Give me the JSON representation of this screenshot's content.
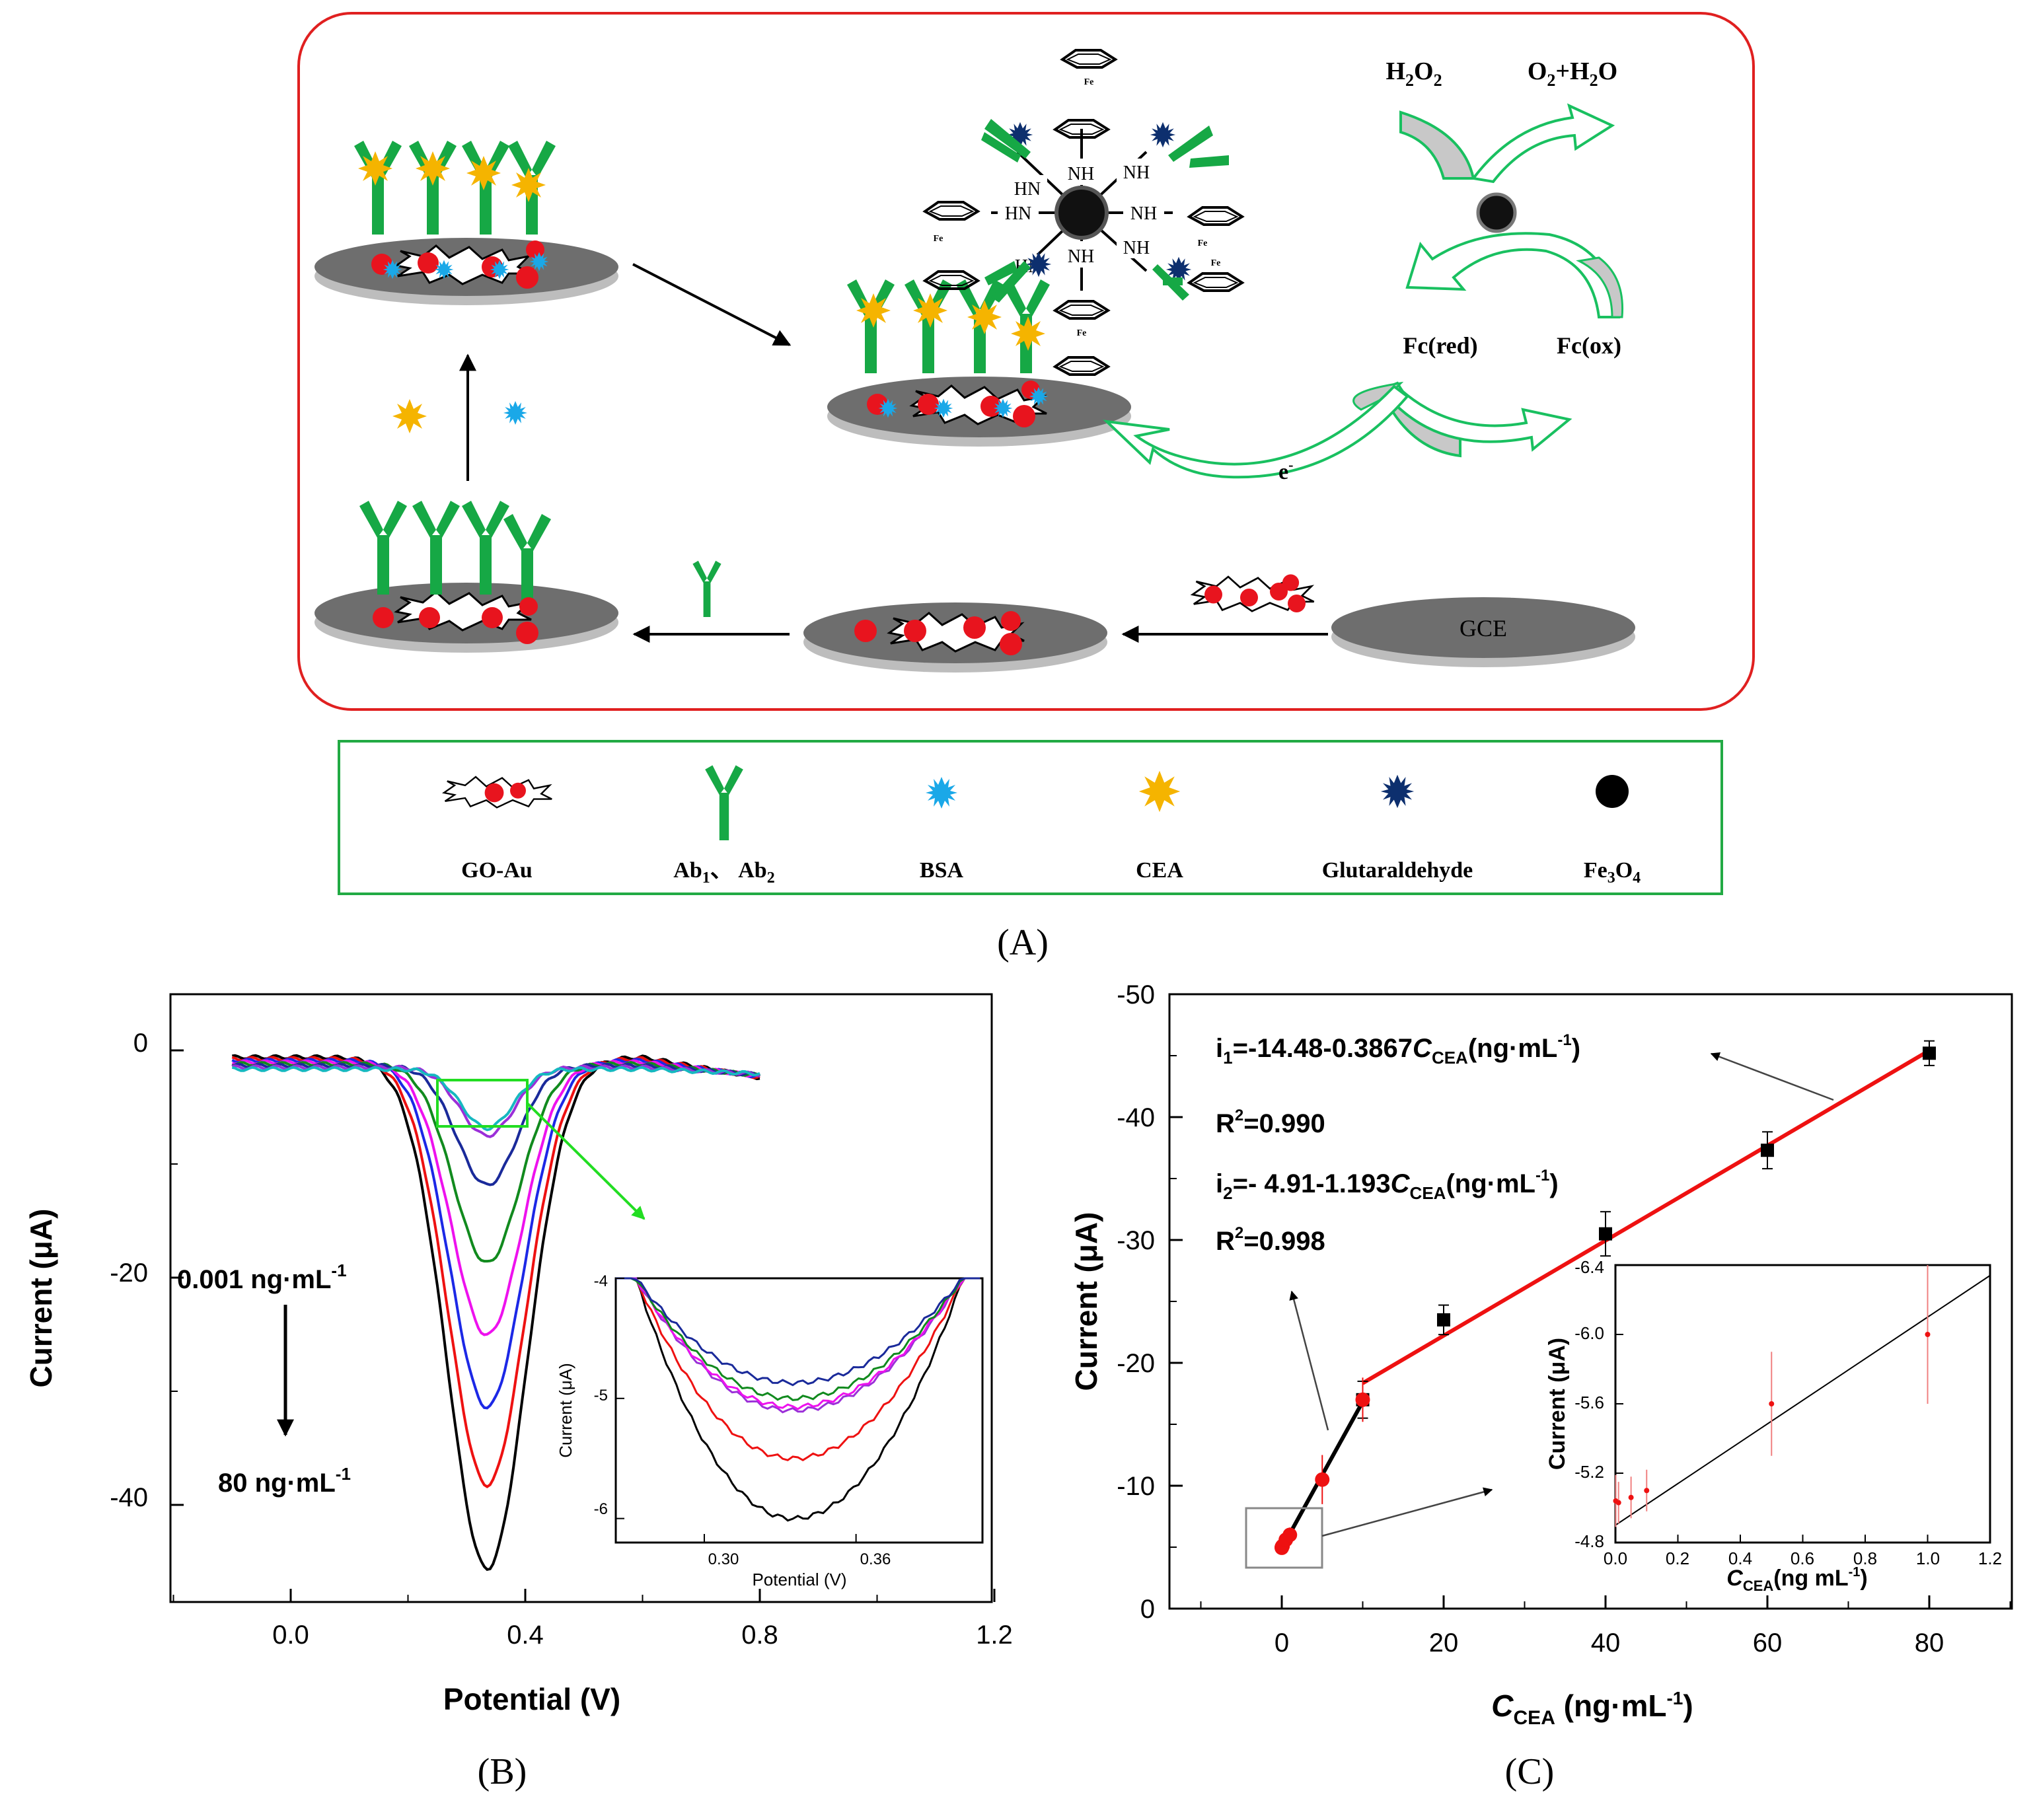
{
  "panelA": {
    "caption": "(A)",
    "ferrocene_label": "Fe",
    "nh_label": "NH",
    "hn_label": "HN",
    "h2o2": "H2O2",
    "o2h2o": "O2+H2O",
    "fc_red": "Fc(red)",
    "fc_ox": "Fc(ox)",
    "electron": "e-",
    "gce": "GCE",
    "legend": {
      "go_au": "GO-Au",
      "ab": "Ab1、Ab2",
      "bsa": "BSA",
      "cea": "CEA",
      "glut": "Glutaraldehyde",
      "fe3o4": "Fe3O4"
    },
    "colors": {
      "frame": "#e02020",
      "legend_frame": "#22aa44",
      "antibody": "#16a845",
      "bsa": "#1aa8e8",
      "cea": "#f5b400",
      "glut": "#0d2f6e",
      "gold": "#e8141e",
      "electrode": "#6e6e6e",
      "arrow_green": "#19c060"
    }
  },
  "panelB": {
    "caption": "(B)",
    "xlabel": "Potential (V)",
    "ylabel": "Current (μA)",
    "xticks": [
      "0.0",
      "0.4",
      "0.8",
      "1.2"
    ],
    "yticks": [
      "0",
      "-20",
      "-40"
    ],
    "conc_low": "0.001  ng·mL",
    "conc_high": "80 ng·mL",
    "sup_minus1": "-1",
    "inset": {
      "xlabel": "Potential (V)",
      "ylabel": "Current (μA)",
      "xticks": [
        "0.30",
        "0.36"
      ],
      "yticks": [
        "-4",
        "-5",
        "-6"
      ]
    }
  },
  "panelC": {
    "caption": "(C)",
    "xlabel_main": "C",
    "xlabel_sub": "CEA",
    "xlabel_unit": " (ng·mL",
    "xlabel_sup": "-1",
    "xlabel_close": ")",
    "ylabel": "Current (μA)",
    "xticks": [
      "0",
      "20",
      "40",
      "60",
      "80"
    ],
    "yticks": [
      "-50",
      "-40",
      "-30",
      "-20",
      "-10",
      "0"
    ],
    "eq1_a": "i",
    "eq1_sub": "1",
    "eq1_b": "=-14.48-0.3867",
    "eq1_c": "C",
    "eq1_csub": "CEA",
    "eq1_d": "(ng·mL",
    "eq1_sup": "-1",
    "eq1_e": ")",
    "r1_a": "R",
    "r1_sup": "2",
    "r1_b": "=0.990",
    "eq2_a": "i",
    "eq2_sub": "2",
    "eq2_b": "=- 4.91-1.193",
    "eq2_c": "C",
    "eq2_csub": "CEA",
    "eq2_d": "(ng·mL",
    "eq2_sup": "-1",
    "eq2_e": ")",
    "r2_a": "R",
    "r2_sup": "2",
    "r2_b": "=0.998",
    "inset": {
      "ylabel": "Current (μA)",
      "xlabel_main": "C",
      "xlabel_sub": "CEA",
      "xlabel_unit": "(ng mL",
      "xlabel_sup": "-1",
      "xlabel_close": ")",
      "xticks": [
        "0.0",
        "0.2",
        "0.4",
        "0.6",
        "0.8",
        "1.0",
        "1.2"
      ],
      "yticks": [
        "-6.4",
        "-6.0",
        "-5.6",
        "-5.2",
        "-4.8"
      ]
    }
  },
  "chart_data": [
    {
      "type": "line",
      "panel": "B",
      "xlabel": "Potential (V)",
      "ylabel": "Current (μA)",
      "xlim": [
        -0.2,
        1.2
      ],
      "ylim": [
        -50,
        5
      ],
      "peak_potential": 0.335,
      "x_range": [
        -0.1,
        0.8
      ],
      "series": [
        {
          "color": "#000000",
          "peak": -45.0,
          "width": 0.095
        },
        {
          "color": "#ee1111",
          "peak": -37.5,
          "width": 0.092
        },
        {
          "color": "#1c28e6",
          "peak": -30.5,
          "width": 0.088
        },
        {
          "color": "#ee11ee",
          "peak": -24.0,
          "width": 0.085
        },
        {
          "color": "#118a1e",
          "peak": -17.5,
          "width": 0.08
        },
        {
          "color": "#1a2a9a",
          "peak": -10.5,
          "width": 0.072
        },
        {
          "color": "#9b2fd8",
          "peak": -6.0,
          "width": 0.065
        },
        {
          "color": "#16b8c0",
          "peak": -5.2,
          "width": 0.062
        }
      ],
      "inset": {
        "xlim": [
          0.265,
          0.41
        ],
        "ylim": [
          -6.2,
          -4.0
        ],
        "minima": [
          {
            "color": "#000000",
            "y": -6.0
          },
          {
            "color": "#ee1111",
            "y": -5.5
          },
          {
            "color": "#9b2fd8",
            "y": -5.1
          },
          {
            "color": "#ee11ee",
            "y": -5.07
          },
          {
            "color": "#118a1e",
            "y": -5.0
          },
          {
            "color": "#1a2a9a",
            "y": -4.87
          }
        ]
      }
    },
    {
      "type": "scatter",
      "panel": "C",
      "xlabel": "C_CEA (ng·mL-1)",
      "ylabel": "Current (μA)",
      "xlim": [
        -10,
        90
      ],
      "ylim": [
        0,
        -50
      ],
      "series": [
        {
          "name": "i1",
          "x": [
            10,
            20,
            40,
            60,
            80
          ],
          "y": [
            -17.0,
            -23.5,
            -30.5,
            -37.3,
            -45.2
          ],
          "err": [
            1.5,
            1.2,
            1.8,
            1.5,
            1.0
          ],
          "fit": {
            "intercept": -14.48,
            "slope": -0.3867,
            "x_range": [
              10,
              80
            ]
          }
        },
        {
          "name": "i2",
          "x": [
            0.001,
            0.01,
            0.05,
            0.1,
            0.5,
            1,
            5,
            10
          ],
          "y": [
            -4.95,
            -5.0,
            -5.05,
            -5.1,
            -5.6,
            -6.0,
            -10.5,
            -17.0
          ],
          "err": [
            0.3,
            0.3,
            0.3,
            0.3,
            0.5,
            0.6,
            2.0,
            1.8
          ],
          "fit": {
            "intercept": -4.91,
            "slope": -1.193,
            "x_range": [
              0,
              10
            ]
          }
        }
      ],
      "inset": {
        "xlim": [
          0,
          1.2
        ],
        "ylim": [
          -4.8,
          -6.4
        ],
        "x": [
          0.001,
          0.01,
          0.05,
          0.1,
          0.5,
          1.0
        ],
        "y": [
          -5.04,
          -5.03,
          -5.06,
          -5.1,
          -5.6,
          -6.0
        ],
        "err": [
          0.15,
          0.12,
          0.12,
          0.12,
          0.3,
          0.4
        ],
        "fit": {
          "x": [
            0,
            1.2
          ],
          "y": [
            -4.9,
            -6.34
          ]
        }
      }
    }
  ]
}
